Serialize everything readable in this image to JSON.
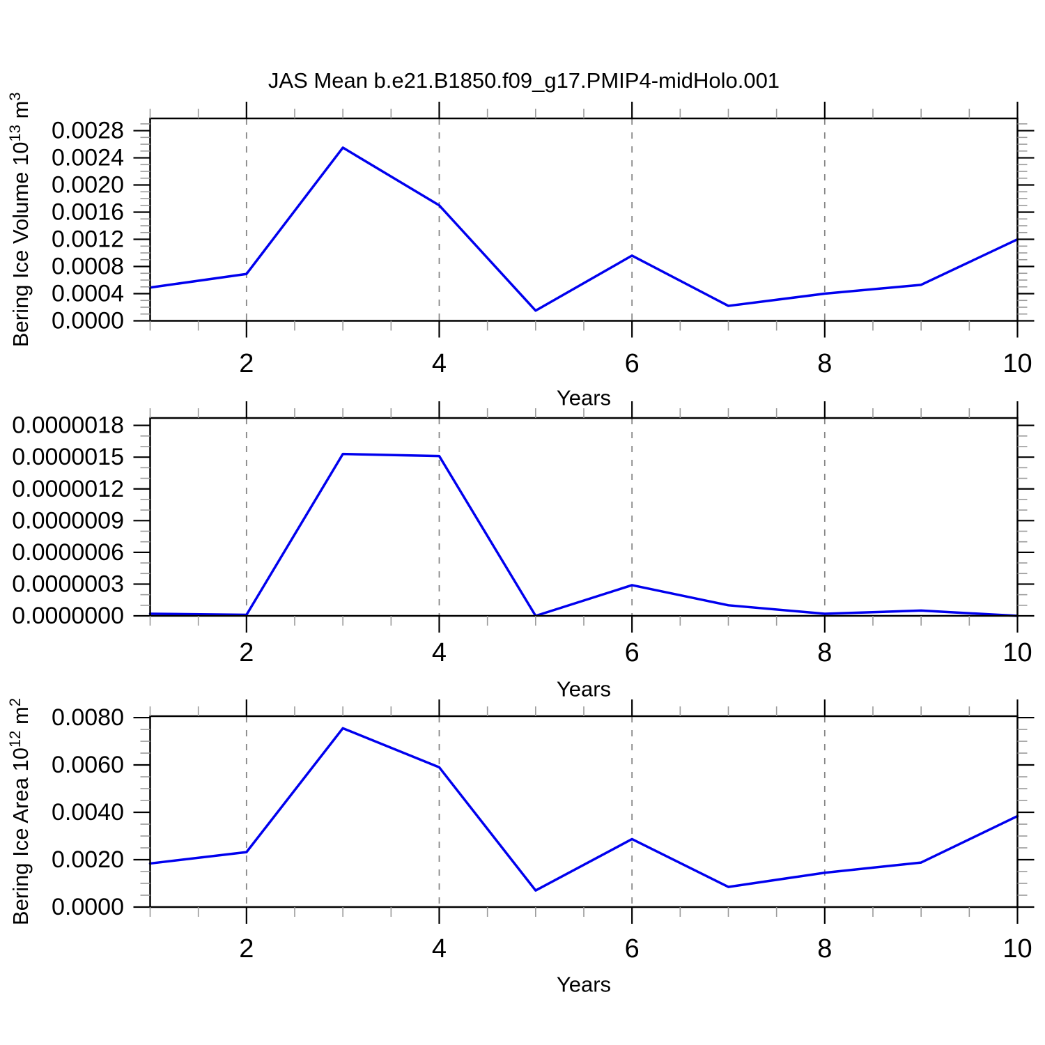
{
  "title": "JAS Mean b.e21.B1850.f09_g17.PMIP4-midHolo.001",
  "colors": {
    "line": "#0000ee",
    "grid": "#878787",
    "axis": "#000000",
    "minor_tick": "#9a9a9a",
    "text": "#000000",
    "background": "#ffffff"
  },
  "chart_data": [
    {
      "type": "line",
      "panel_name": "panel-bering-ice-volume",
      "ylabel_parts": [
        {
          "text": "Bering Ice Volume 10"
        },
        {
          "text": "13",
          "sup": true
        },
        {
          "text": " m"
        },
        {
          "text": "3",
          "sup": true
        }
      ],
      "xlabel": "Years",
      "x": [
        1,
        2,
        3,
        4,
        5,
        6,
        7,
        8,
        9,
        10
      ],
      "values": [
        0.00049,
        0.00069,
        0.00255,
        0.0017,
        0.00015,
        0.00096,
        0.00022,
        0.0004,
        0.00053,
        0.0012
      ],
      "xlim": [
        1,
        10
      ],
      "ylim": [
        0,
        0.00298
      ],
      "xticks": {
        "major": [
          2,
          4,
          6,
          8,
          10
        ],
        "labels": [
          "2",
          "4",
          "6",
          "8",
          "10"
        ],
        "minor_step": 0.5
      },
      "yticks": {
        "major": [
          0.0,
          0.0004,
          0.0008,
          0.0012,
          0.0016,
          0.002,
          0.0024,
          0.0028
        ],
        "labels": [
          "0.0000",
          "0.0004",
          "0.0008",
          "0.0012",
          "0.0016",
          "0.0020",
          "0.0024",
          "0.0028"
        ],
        "minor_step": 0.0001
      },
      "gridlines_x": [
        2,
        4,
        6,
        8
      ],
      "grid_on": true,
      "legend": "none"
    },
    {
      "type": "line",
      "panel_name": "panel-bering-ice-middle",
      "ylabel_parts": [],
      "xlabel": "Years",
      "x": [
        1,
        2,
        3,
        4,
        5,
        6,
        7,
        8,
        9,
        10
      ],
      "values": [
        2e-08,
        1e-08,
        1.53e-06,
        1.51e-06,
        0.0,
        2.9e-07,
        1e-07,
        2e-08,
        5e-08,
        0.0
      ],
      "xlim": [
        1,
        10
      ],
      "ylim": [
        0,
        1.87e-06
      ],
      "xticks": {
        "major": [
          2,
          4,
          6,
          8,
          10
        ],
        "labels": [
          "2",
          "4",
          "6",
          "8",
          "10"
        ],
        "minor_step": 0.5
      },
      "yticks": {
        "major": [
          0.0,
          3e-07,
          6e-07,
          9e-07,
          1.2e-06,
          1.5e-06,
          1.8e-06
        ],
        "labels": [
          "0.0000000",
          "0.0000003",
          "0.0000006",
          "0.0000009",
          "0.0000012",
          "0.0000015",
          "0.0000018"
        ],
        "minor_step": 1e-07
      },
      "gridlines_x": [
        2,
        4,
        6,
        8
      ],
      "grid_on": true,
      "legend": "none"
    },
    {
      "type": "line",
      "panel_name": "panel-bering-ice-area",
      "ylabel_parts": [
        {
          "text": "Bering Ice Area 10"
        },
        {
          "text": "12",
          "sup": true
        },
        {
          "text": " m"
        },
        {
          "text": "2",
          "sup": true
        }
      ],
      "xlabel": "Years",
      "x": [
        1,
        2,
        3,
        4,
        5,
        6,
        7,
        8,
        9,
        10
      ],
      "values": [
        0.00184,
        0.00232,
        0.00755,
        0.0059,
        0.0007,
        0.00287,
        0.00085,
        0.00145,
        0.00188,
        0.00384
      ],
      "xlim": [
        1,
        10
      ],
      "ylim": [
        0,
        0.00806
      ],
      "xticks": {
        "major": [
          2,
          4,
          6,
          8,
          10
        ],
        "labels": [
          "2",
          "4",
          "6",
          "8",
          "10"
        ],
        "minor_step": 0.5
      },
      "yticks": {
        "major": [
          0.0,
          0.002,
          0.004,
          0.006,
          0.008
        ],
        "labels": [
          "0.0000",
          "0.0020",
          "0.0040",
          "0.0060",
          "0.0080"
        ],
        "minor_step": 0.0005
      },
      "gridlines_x": [
        2,
        4,
        6,
        8
      ],
      "grid_on": true,
      "legend": "none"
    }
  ]
}
